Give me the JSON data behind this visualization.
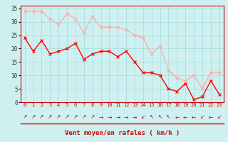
{
  "hours": [
    0,
    1,
    2,
    3,
    4,
    5,
    6,
    7,
    8,
    9,
    10,
    11,
    12,
    13,
    14,
    15,
    16,
    17,
    18,
    19,
    20,
    21,
    22,
    23
  ],
  "wind_avg": [
    24,
    19,
    23,
    18,
    19,
    20,
    22,
    16,
    18,
    19,
    19,
    17,
    19,
    15,
    11,
    11,
    10,
    5,
    4,
    7,
    1,
    2,
    8,
    3
  ],
  "wind_gust": [
    34,
    34,
    34,
    31,
    29,
    33,
    31,
    26,
    32,
    28,
    28,
    28,
    27,
    25,
    24,
    18,
    21,
    12,
    9,
    8,
    10,
    5,
    11,
    11
  ],
  "avg_color": "#ff0000",
  "gust_color": "#ffaaaa",
  "bg_color": "#cff0f0",
  "grid_color": "#aadddd",
  "xlabel": "Vent moyen/en rafales ( km/h )",
  "ylim": [
    0,
    36
  ],
  "yticks": [
    0,
    5,
    10,
    15,
    20,
    25,
    30,
    35
  ],
  "arrow_chars": [
    "↗",
    "↗",
    "↗",
    "↗",
    "↗",
    "↗",
    "↗",
    "↗",
    "↗",
    "→",
    "→",
    "→",
    "→",
    "→",
    "↙",
    "↖",
    "↖",
    "↖",
    "←",
    "←",
    "←",
    "↙",
    "←",
    "↙"
  ]
}
